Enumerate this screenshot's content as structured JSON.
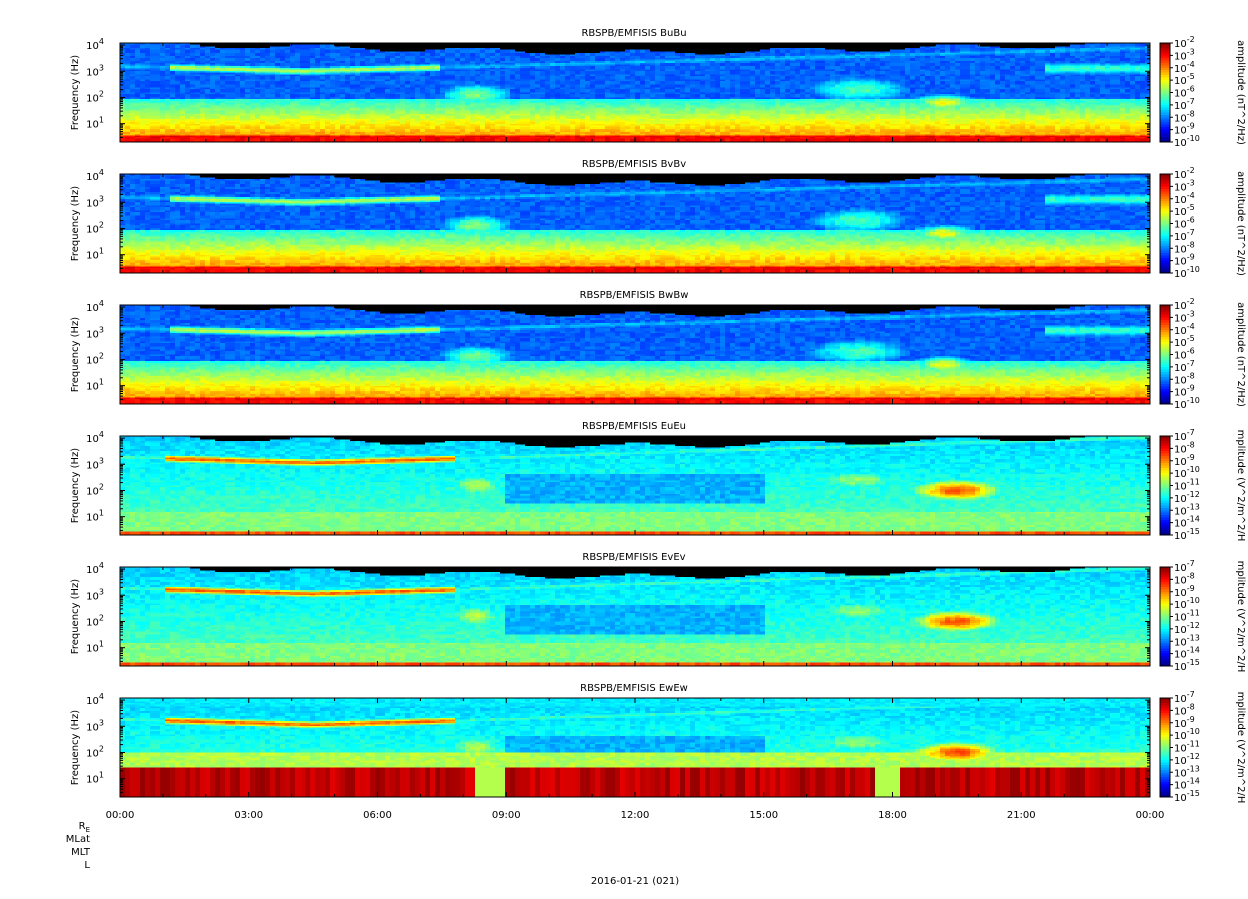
{
  "chart_data": [
    {
      "type": "heatmap",
      "title": "RBSPB/EMFISIS  BuBu",
      "ylabel": "Frequency (Hz)",
      "yscale": "log",
      "ylim": [
        2,
        12000
      ],
      "yticks": [
        {
          "base": "10",
          "exp": "1"
        },
        {
          "base": "10",
          "exp": "2"
        },
        {
          "base": "10",
          "exp": "3"
        },
        {
          "base": "10",
          "exp": "4"
        }
      ],
      "colorbar": {
        "label": "amplitude (nT^2/Hz)",
        "scale": "log",
        "range": [
          -10,
          -2
        ],
        "tick_exps": [
          "-2",
          "-3",
          "-4",
          "-5",
          "-6",
          "-7",
          "-8",
          "-9",
          "-10"
        ]
      },
      "kind": "B"
    },
    {
      "type": "heatmap",
      "title": "RBSPB/EMFISIS  BvBv",
      "ylabel": "Frequency (Hz)",
      "yscale": "log",
      "ylim": [
        2,
        12000
      ],
      "yticks": [
        {
          "base": "10",
          "exp": "1"
        },
        {
          "base": "10",
          "exp": "2"
        },
        {
          "base": "10",
          "exp": "3"
        },
        {
          "base": "10",
          "exp": "4"
        }
      ],
      "colorbar": {
        "label": "amplitude (nT^2/Hz)",
        "scale": "log",
        "range": [
          -10,
          -2
        ],
        "tick_exps": [
          "-2",
          "-3",
          "-4",
          "-5",
          "-6",
          "-7",
          "-8",
          "-9",
          "-10"
        ]
      },
      "kind": "B"
    },
    {
      "type": "heatmap",
      "title": "RBSPB/EMFISIS  BwBw",
      "ylabel": "Frequency (Hz)",
      "yscale": "log",
      "ylim": [
        2,
        12000
      ],
      "yticks": [
        {
          "base": "10",
          "exp": "1"
        },
        {
          "base": "10",
          "exp": "2"
        },
        {
          "base": "10",
          "exp": "3"
        },
        {
          "base": "10",
          "exp": "4"
        }
      ],
      "colorbar": {
        "label": "amplitude (nT^2/Hz)",
        "scale": "log",
        "range": [
          -10,
          -2
        ],
        "tick_exps": [
          "-2",
          "-3",
          "-4",
          "-5",
          "-6",
          "-7",
          "-8",
          "-9",
          "-10"
        ]
      },
      "kind": "B"
    },
    {
      "type": "heatmap",
      "title": "RBSPB/EMFISIS  EuEu",
      "ylabel": "Frequency (Hz)",
      "yscale": "log",
      "ylim": [
        2,
        12000
      ],
      "yticks": [
        {
          "base": "10",
          "exp": "1"
        },
        {
          "base": "10",
          "exp": "2"
        },
        {
          "base": "10",
          "exp": "3"
        },
        {
          "base": "10",
          "exp": "4"
        }
      ],
      "colorbar": {
        "label": "mplitude (V^2/m^2/H",
        "scale": "log",
        "range": [
          -15,
          -7
        ],
        "tick_exps": [
          "-7",
          "-8",
          "-9",
          "-10",
          "-11",
          "-12",
          "-13",
          "-14",
          "-15"
        ]
      },
      "kind": "E"
    },
    {
      "type": "heatmap",
      "title": "RBSPB/EMFISIS  EvEv",
      "ylabel": "Frequency (Hz)",
      "yscale": "log",
      "ylim": [
        2,
        12000
      ],
      "yticks": [
        {
          "base": "10",
          "exp": "1"
        },
        {
          "base": "10",
          "exp": "2"
        },
        {
          "base": "10",
          "exp": "3"
        },
        {
          "base": "10",
          "exp": "4"
        }
      ],
      "colorbar": {
        "label": "mplitude (V^2/m^2/H",
        "scale": "log",
        "range": [
          -15,
          -7
        ],
        "tick_exps": [
          "-7",
          "-8",
          "-9",
          "-10",
          "-11",
          "-12",
          "-13",
          "-14",
          "-15"
        ]
      },
      "kind": "E"
    },
    {
      "type": "heatmap",
      "title": "RBSPB/EMFISIS  EwEw",
      "ylabel": "Frequency (Hz)",
      "yscale": "log",
      "ylim": [
        2,
        12000
      ],
      "yticks": [
        {
          "base": "10",
          "exp": "1"
        },
        {
          "base": "10",
          "exp": "2"
        },
        {
          "base": "10",
          "exp": "3"
        },
        {
          "base": "10",
          "exp": "4"
        }
      ],
      "colorbar": {
        "label": "mplitude (V^2/m^2/H",
        "scale": "log",
        "range": [
          -15,
          -7
        ],
        "tick_exps": [
          "-7",
          "-8",
          "-9",
          "-10",
          "-11",
          "-12",
          "-13",
          "-14",
          "-15"
        ]
      },
      "kind": "Ew"
    }
  ],
  "x_axis": {
    "tick_labels": [
      "00:00",
      "03:00",
      "06:00",
      "09:00",
      "12:00",
      "15:00",
      "18:00",
      "21:00",
      "00:00"
    ],
    "range_hours": [
      0,
      24
    ]
  },
  "ephemeris_labels": [
    "R",
    "MLat",
    "MLT",
    "L"
  ],
  "ephemeris_subscript": "E",
  "date_label": "2016-01-21 (021)"
}
